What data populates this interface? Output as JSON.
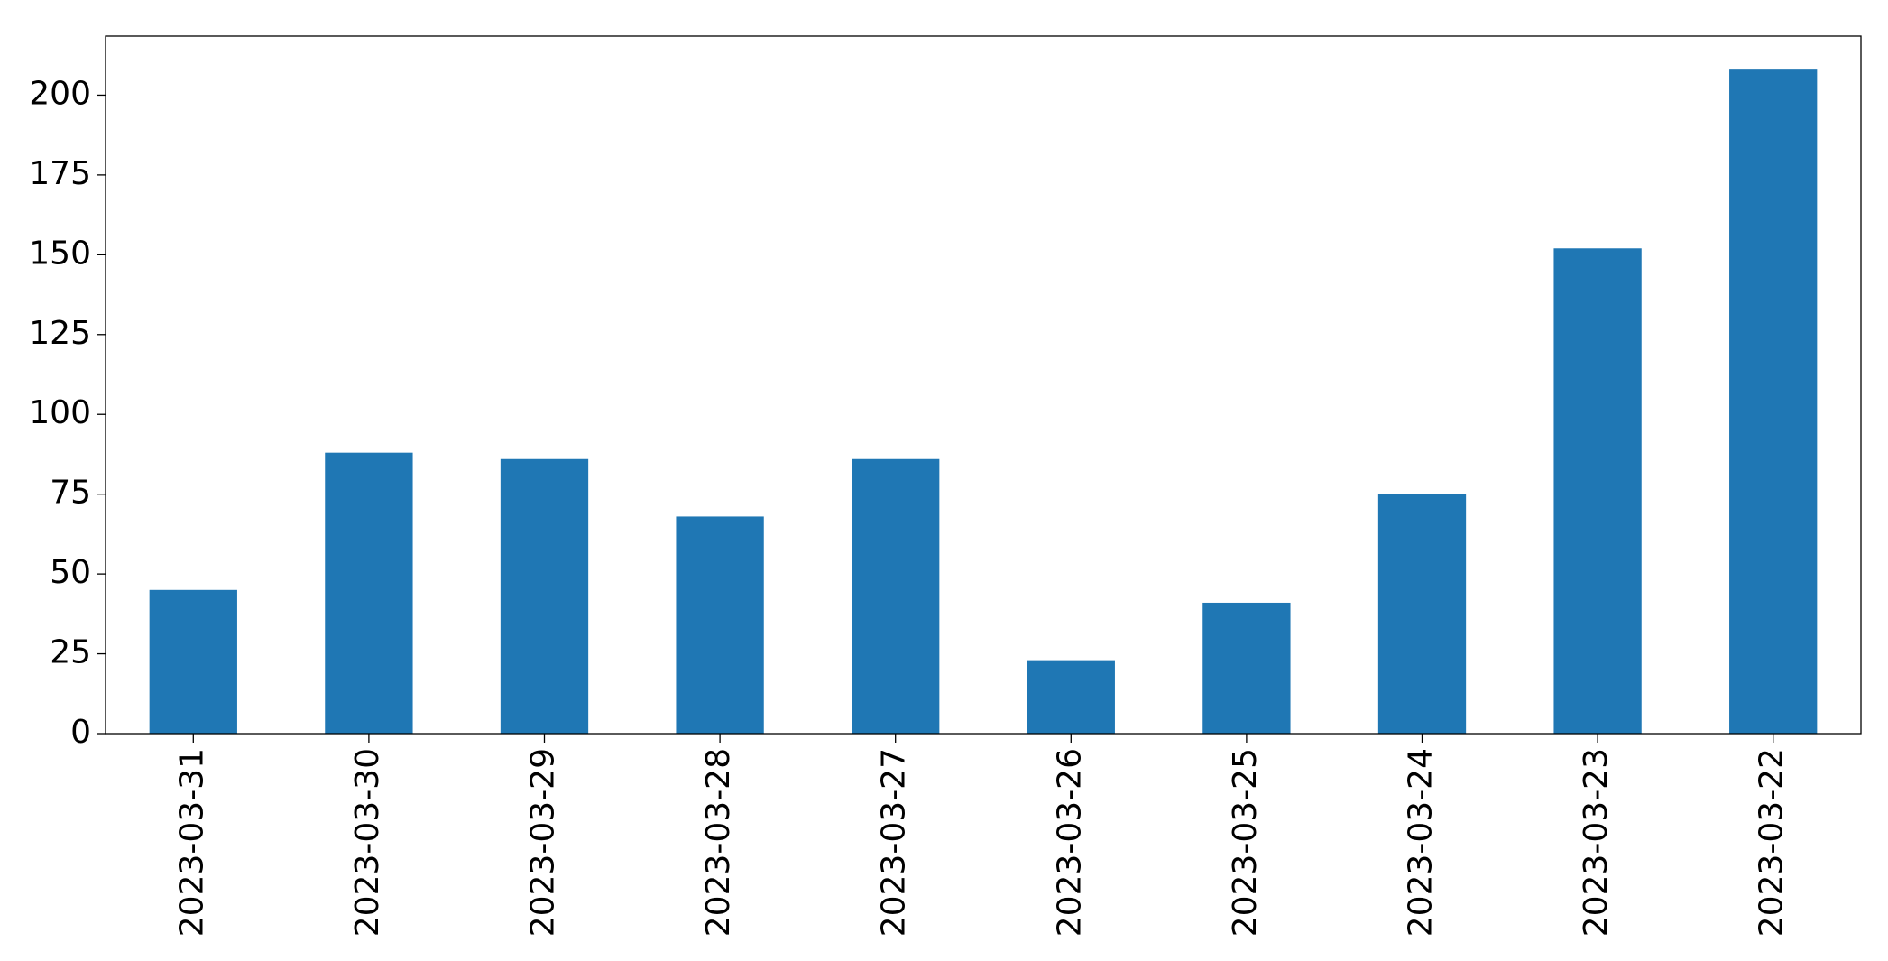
{
  "chart_data": {
    "type": "bar",
    "categories": [
      "2023-03-31",
      "2023-03-30",
      "2023-03-29",
      "2023-03-28",
      "2023-03-27",
      "2023-03-26",
      "2023-03-25",
      "2023-03-24",
      "2023-03-23",
      "2023-03-22"
    ],
    "values": [
      45,
      88,
      86,
      68,
      86,
      23,
      41,
      75,
      152,
      208
    ],
    "color": "#1f77b4",
    "ylim": [
      0,
      218.5
    ],
    "yticks": [
      0,
      25,
      50,
      75,
      100,
      125,
      150,
      175,
      200
    ],
    "grid": false
  }
}
